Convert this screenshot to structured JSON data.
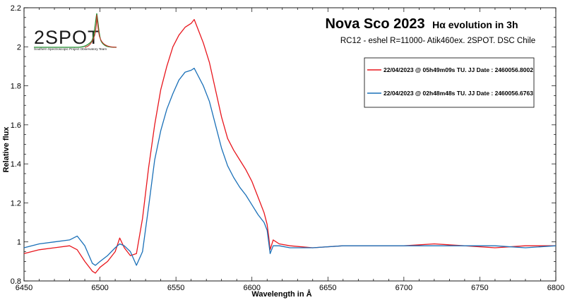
{
  "chart_data": {
    "type": "line",
    "title": "Nova Sco 2023",
    "title_suffix": "Hα evolution in 3h",
    "subtitle": "RC12 - eshel R=11000- Atik460ex. 2SPOT. DSC Chile",
    "xlabel": "Wavelength in Å",
    "ylabel": "Relative flux",
    "xlim": [
      6450,
      6800
    ],
    "ylim": [
      0.8,
      2.2
    ],
    "x_ticks": [
      "6450",
      "6500",
      "6550",
      "6600",
      "6650",
      "6700",
      "6750",
      "6800"
    ],
    "y_ticks": [
      "0.8",
      "1",
      "1.2",
      "1.4",
      "1.6",
      "1.8",
      "2",
      "2.2"
    ],
    "grid": false,
    "legend_position": "top-right",
    "series": [
      {
        "name": "22/04/2023 @ 05h49m09s TU.  JJ Date : 2460056.8002",
        "color": "#e8161d",
        "x": [
          6450,
          6460,
          6470,
          6480,
          6485,
          6490,
          6495,
          6497,
          6500,
          6505,
          6510,
          6513,
          6516,
          6520,
          6524,
          6528,
          6532,
          6536,
          6540,
          6544,
          6548,
          6552,
          6556,
          6560,
          6562,
          6564,
          6568,
          6572,
          6576,
          6580,
          6584,
          6588,
          6592,
          6596,
          6600,
          6604,
          6608,
          6610,
          6611,
          6612,
          6614,
          6618,
          6625,
          6640,
          6660,
          6680,
          6700,
          6720,
          6740,
          6760,
          6780,
          6800
        ],
        "y": [
          0.94,
          0.96,
          0.97,
          0.98,
          0.96,
          0.9,
          0.85,
          0.84,
          0.87,
          0.9,
          0.95,
          1.02,
          0.97,
          0.93,
          0.94,
          1.12,
          1.38,
          1.6,
          1.78,
          1.9,
          2.0,
          2.06,
          2.1,
          2.12,
          2.14,
          2.1,
          2.02,
          1.92,
          1.78,
          1.64,
          1.53,
          1.47,
          1.42,
          1.37,
          1.31,
          1.23,
          1.15,
          1.09,
          1.03,
          0.96,
          1.01,
          0.99,
          0.98,
          0.97,
          0.98,
          0.98,
          0.98,
          0.99,
          0.98,
          0.97,
          0.98,
          0.98
        ]
      },
      {
        "name": "22/04/2023 @ 02h48m48s TU.  JJ Date : 2460056.6763",
        "color": "#1a70b8",
        "x": [
          6450,
          6460,
          6470,
          6480,
          6485,
          6490,
          6495,
          6497,
          6500,
          6505,
          6510,
          6513,
          6516,
          6520,
          6524,
          6528,
          6532,
          6536,
          6540,
          6544,
          6548,
          6552,
          6556,
          6560,
          6562,
          6564,
          6568,
          6572,
          6576,
          6580,
          6584,
          6588,
          6592,
          6596,
          6600,
          6604,
          6608,
          6610,
          6611,
          6612,
          6614,
          6618,
          6625,
          6640,
          6660,
          6680,
          6700,
          6720,
          6740,
          6760,
          6780,
          6800
        ],
        "y": [
          0.97,
          0.99,
          1.0,
          1.01,
          1.03,
          0.98,
          0.89,
          0.88,
          0.9,
          0.93,
          0.97,
          0.99,
          0.98,
          0.95,
          0.88,
          0.95,
          1.18,
          1.42,
          1.57,
          1.68,
          1.76,
          1.83,
          1.87,
          1.88,
          1.89,
          1.86,
          1.8,
          1.72,
          1.6,
          1.48,
          1.39,
          1.33,
          1.28,
          1.24,
          1.19,
          1.14,
          1.1,
          1.06,
          1.0,
          0.94,
          0.98,
          0.98,
          0.97,
          0.97,
          0.98,
          0.98,
          0.98,
          0.98,
          0.98,
          0.98,
          0.97,
          0.98
        ]
      }
    ]
  },
  "logo": {
    "name": "2SPOT",
    "tagline": "Southern Spectroscopic Project Observatory Team"
  }
}
